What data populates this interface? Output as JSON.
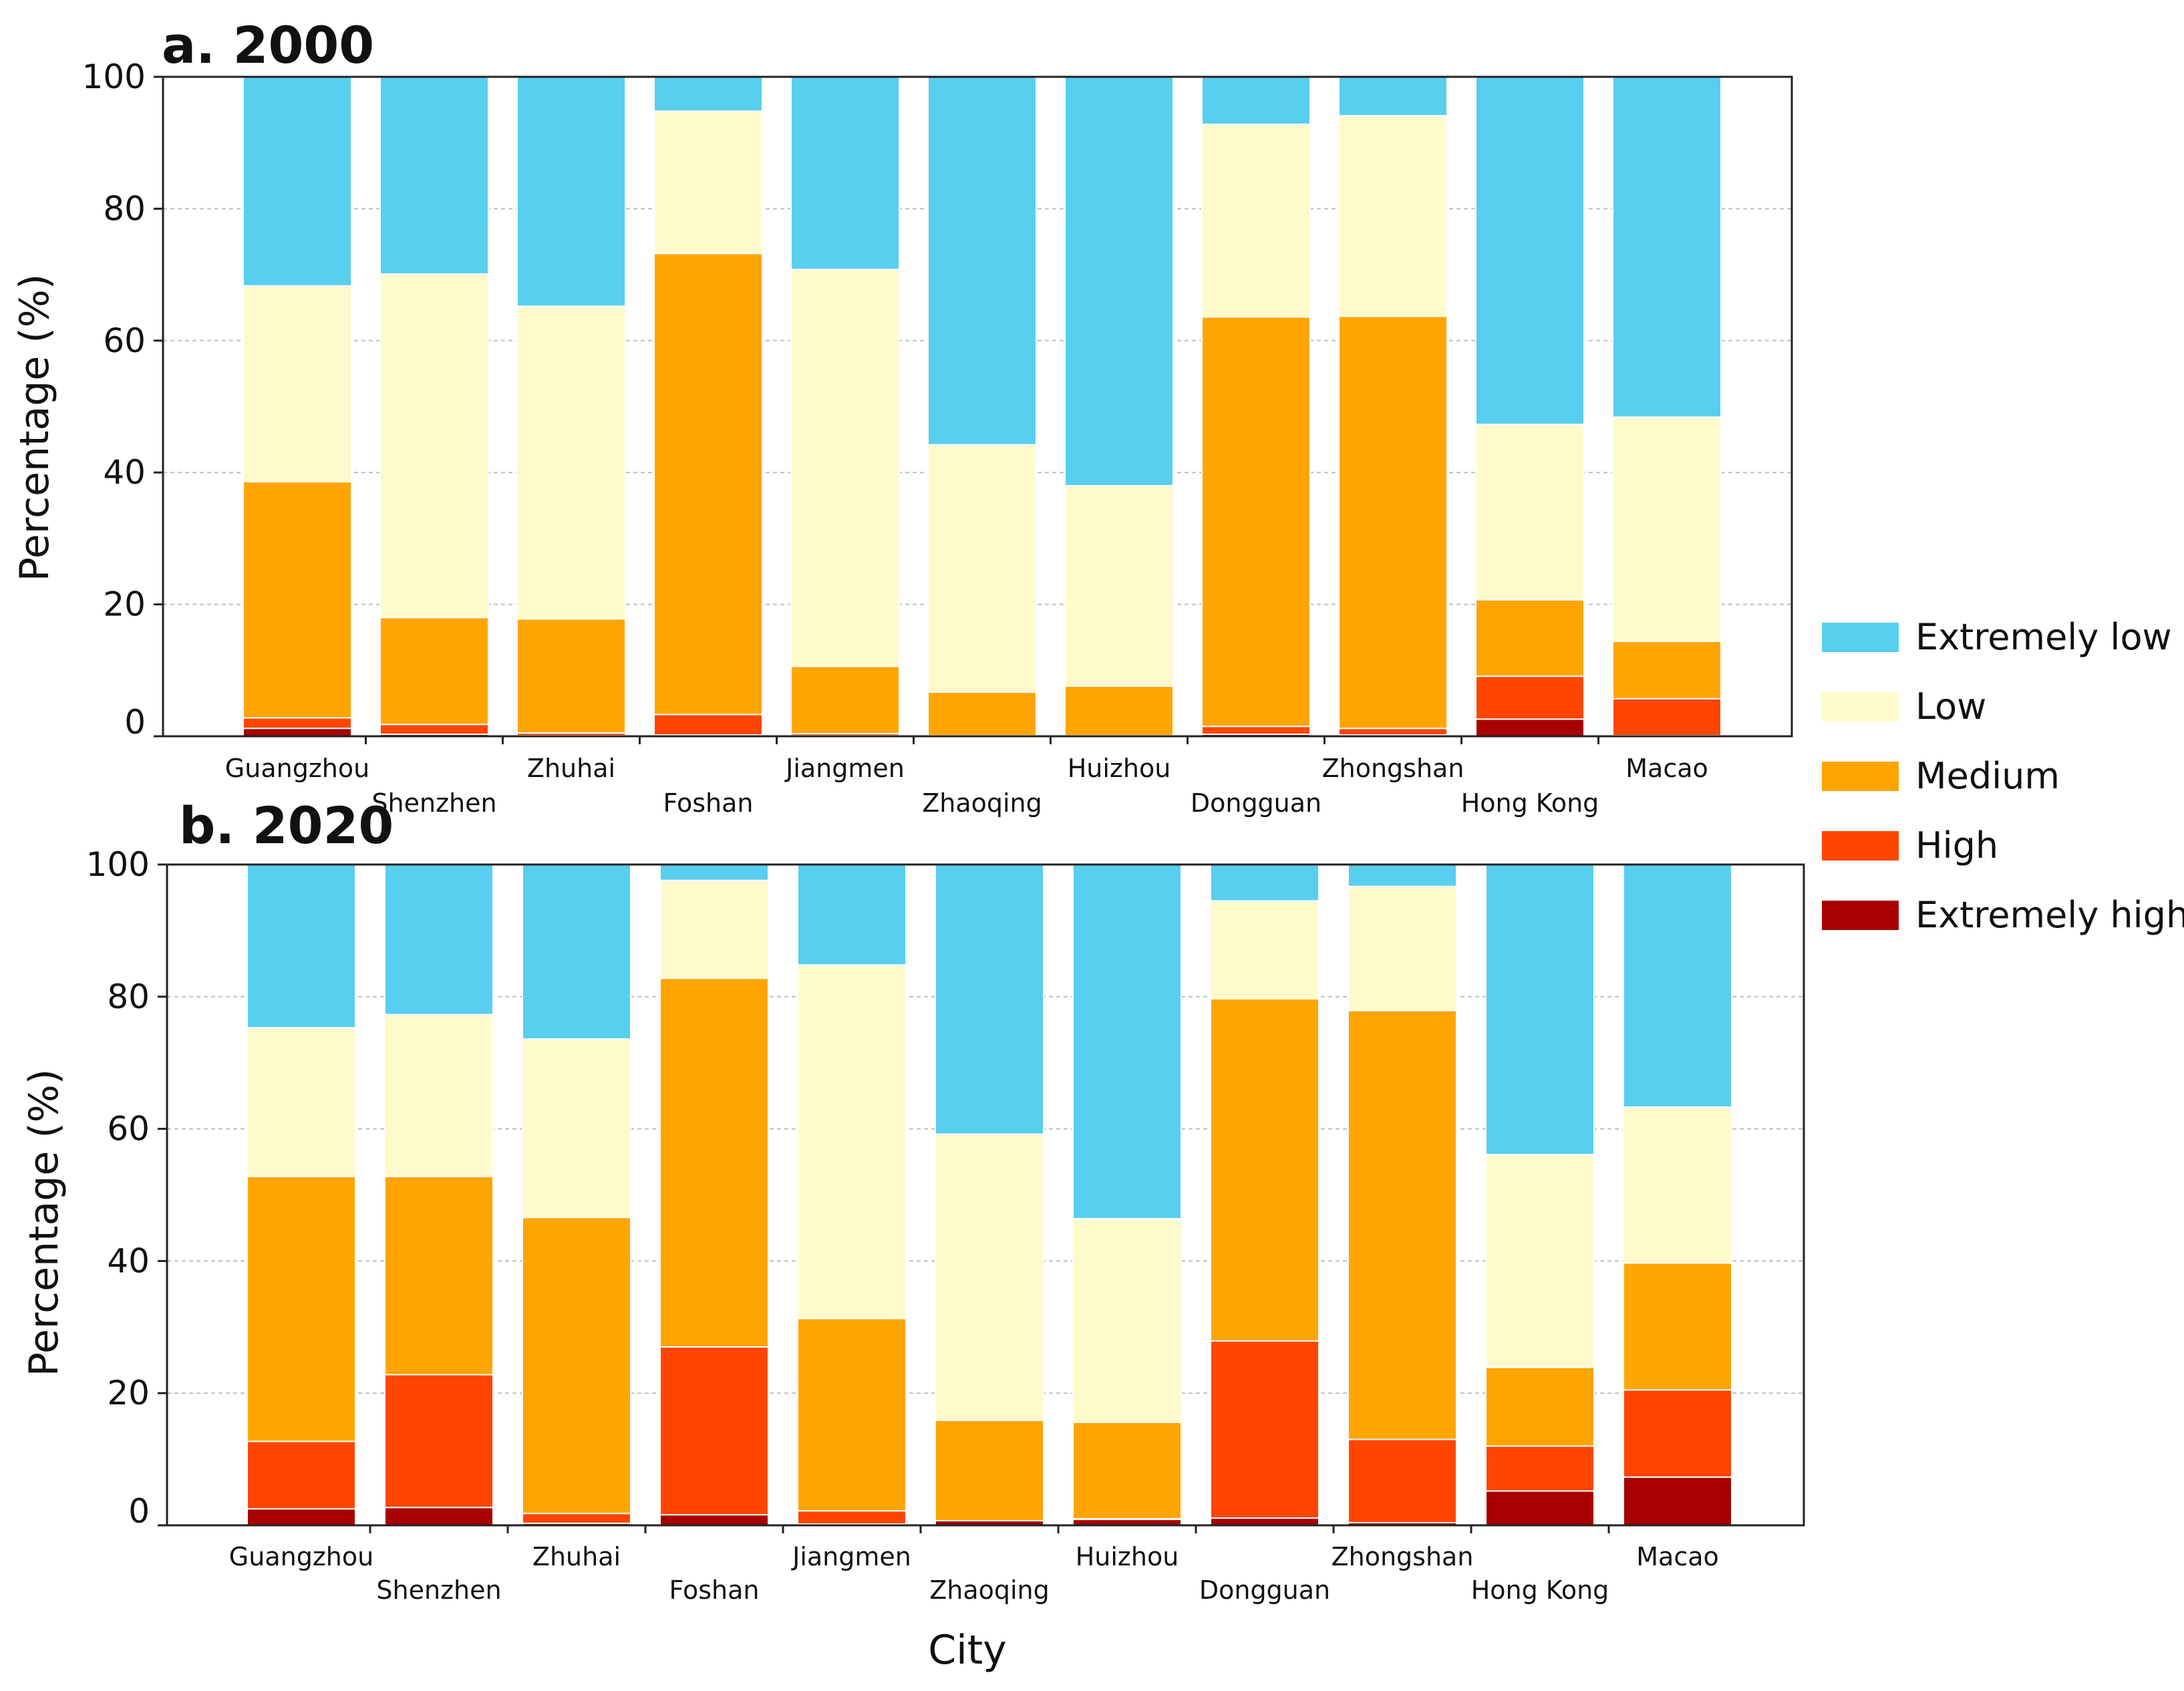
{
  "chart_data": [
    {
      "type": "bar",
      "stacked": true,
      "title": "a. 2000",
      "xlabel": "",
      "ylabel": "Percentage (%)",
      "ylim": [
        0,
        100
      ],
      "yticks": [
        0,
        20,
        40,
        60,
        80,
        100
      ],
      "grid": true,
      "categories": [
        "Guangzhou",
        "Shenzhen",
        "Zhuhai",
        "Foshan",
        "Jiangmen",
        "Zhaoqing",
        "Huizhou",
        "Dongguan",
        "Zhongshan",
        "Hong Kong",
        "Macao"
      ],
      "series": [
        {
          "name": "Extremely high",
          "values": [
            1.2,
            0.3,
            0.1,
            0.2,
            0.1,
            0.0,
            0.0,
            0.3,
            0.2,
            2.6,
            0.1
          ]
        },
        {
          "name": "High",
          "values": [
            1.6,
            1.5,
            0.4,
            3.1,
            0.3,
            0.1,
            0.1,
            1.2,
            1.0,
            6.5,
            5.6
          ]
        },
        {
          "name": "Medium",
          "values": [
            35.8,
            16.2,
            17.3,
            69.9,
            10.2,
            6.6,
            7.5,
            62.1,
            62.5,
            11.6,
            8.7
          ]
        },
        {
          "name": "Low",
          "values": [
            29.7,
            52.1,
            47.4,
            21.6,
            60.2,
            37.5,
            30.4,
            29.2,
            30.4,
            26.6,
            34.0
          ]
        },
        {
          "name": "Extremely low",
          "values": [
            31.7,
            29.9,
            34.8,
            5.2,
            29.2,
            55.8,
            62.0,
            7.2,
            5.9,
            52.7,
            51.6
          ]
        }
      ]
    },
    {
      "type": "bar",
      "stacked": true,
      "title": "b. 2020",
      "xlabel": "City",
      "ylabel": "Percentage (%)",
      "ylim": [
        0,
        100
      ],
      "yticks": [
        0,
        20,
        40,
        60,
        80,
        100
      ],
      "grid": true,
      "categories": [
        "Guangzhou",
        "Shenzhen",
        "Zhuhai",
        "Foshan",
        "Jiangmen",
        "Zhaoqing",
        "Huizhou",
        "Dongguan",
        "Zhongshan",
        "Hong Kong",
        "Macao"
      ],
      "series": [
        {
          "name": "Extremely high",
          "values": [
            2.5,
            2.7,
            0.3,
            1.6,
            0.2,
            0.7,
            0.9,
            1.1,
            0.4,
            5.2,
            7.3
          ]
        },
        {
          "name": "High",
          "values": [
            10.2,
            20.1,
            1.5,
            25.4,
            2.0,
            0.0,
            0.1,
            26.8,
            12.6,
            6.8,
            13.2
          ]
        },
        {
          "name": "Medium",
          "values": [
            40.1,
            30.0,
            44.8,
            55.8,
            29.1,
            15.2,
            14.6,
            51.8,
            64.9,
            11.9,
            19.2
          ]
        },
        {
          "name": "Low",
          "values": [
            22.5,
            24.5,
            27.0,
            14.8,
            53.5,
            43.3,
            30.8,
            14.8,
            18.8,
            32.2,
            23.6
          ]
        },
        {
          "name": "Extremely low",
          "values": [
            24.7,
            22.7,
            26.4,
            2.4,
            15.2,
            40.8,
            53.6,
            5.5,
            3.3,
            43.9,
            36.7
          ]
        }
      ]
    }
  ],
  "legend": {
    "position": "right",
    "items": [
      {
        "label": "Extremely low",
        "color": "#58CFEE"
      },
      {
        "label": "Low",
        "color": "#FFFACC"
      },
      {
        "label": "Medium",
        "color": "#FFA500"
      },
      {
        "label": "High",
        "color": "#FF4500"
      },
      {
        "label": "Extremely high",
        "color": "#A80000"
      }
    ]
  }
}
